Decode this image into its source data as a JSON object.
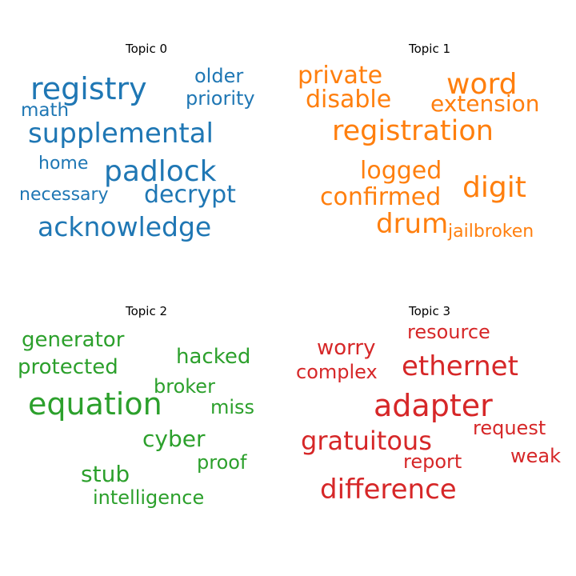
{
  "chart_data": [
    {
      "type": "wordcloud",
      "title": "Topic 0",
      "color": "#1f77b4",
      "words": [
        {
          "text": "registry",
          "weight": 1.0
        },
        {
          "text": "padlock",
          "weight": 0.95
        },
        {
          "text": "supplemental",
          "weight": 0.93
        },
        {
          "text": "acknowledge",
          "weight": 0.9
        },
        {
          "text": "decrypt",
          "weight": 0.85
        },
        {
          "text": "older",
          "weight": 0.65
        },
        {
          "text": "priority",
          "weight": 0.65
        },
        {
          "text": "math",
          "weight": 0.62
        },
        {
          "text": "home",
          "weight": 0.6
        },
        {
          "text": "necessary",
          "weight": 0.58
        }
      ]
    },
    {
      "type": "wordcloud",
      "title": "Topic 1",
      "color": "#ff7f0e",
      "words": [
        {
          "text": "registration",
          "weight": 1.0
        },
        {
          "text": "word",
          "weight": 0.98
        },
        {
          "text": "digit",
          "weight": 0.95
        },
        {
          "text": "drum",
          "weight": 0.9
        },
        {
          "text": "private",
          "weight": 0.85
        },
        {
          "text": "disable",
          "weight": 0.85
        },
        {
          "text": "logged",
          "weight": 0.85
        },
        {
          "text": "confirmed",
          "weight": 0.85
        },
        {
          "text": "extension",
          "weight": 0.8
        },
        {
          "text": "jailbroken",
          "weight": 0.7
        }
      ]
    },
    {
      "type": "wordcloud",
      "title": "Topic 2",
      "color": "#2ca02c",
      "words": [
        {
          "text": "equation",
          "weight": 1.0
        },
        {
          "text": "generator",
          "weight": 0.8
        },
        {
          "text": "protected",
          "weight": 0.8
        },
        {
          "text": "hacked",
          "weight": 0.8
        },
        {
          "text": "cyber",
          "weight": 0.8
        },
        {
          "text": "stub",
          "weight": 0.8
        },
        {
          "text": "intelligence",
          "weight": 0.75
        },
        {
          "text": "broker",
          "weight": 0.75
        },
        {
          "text": "miss",
          "weight": 0.75
        },
        {
          "text": "proof",
          "weight": 0.75
        }
      ]
    },
    {
      "type": "wordcloud",
      "title": "Topic 3",
      "color": "#d62728",
      "words": [
        {
          "text": "adapter",
          "weight": 1.0
        },
        {
          "text": "ethernet",
          "weight": 0.95
        },
        {
          "text": "difference",
          "weight": 0.93
        },
        {
          "text": "gratuitous",
          "weight": 0.9
        },
        {
          "text": "worry",
          "weight": 0.72
        },
        {
          "text": "resource",
          "weight": 0.7
        },
        {
          "text": "complex",
          "weight": 0.7
        },
        {
          "text": "request",
          "weight": 0.7
        },
        {
          "text": "report",
          "weight": 0.7
        },
        {
          "text": "weak",
          "weight": 0.7
        }
      ]
    }
  ]
}
